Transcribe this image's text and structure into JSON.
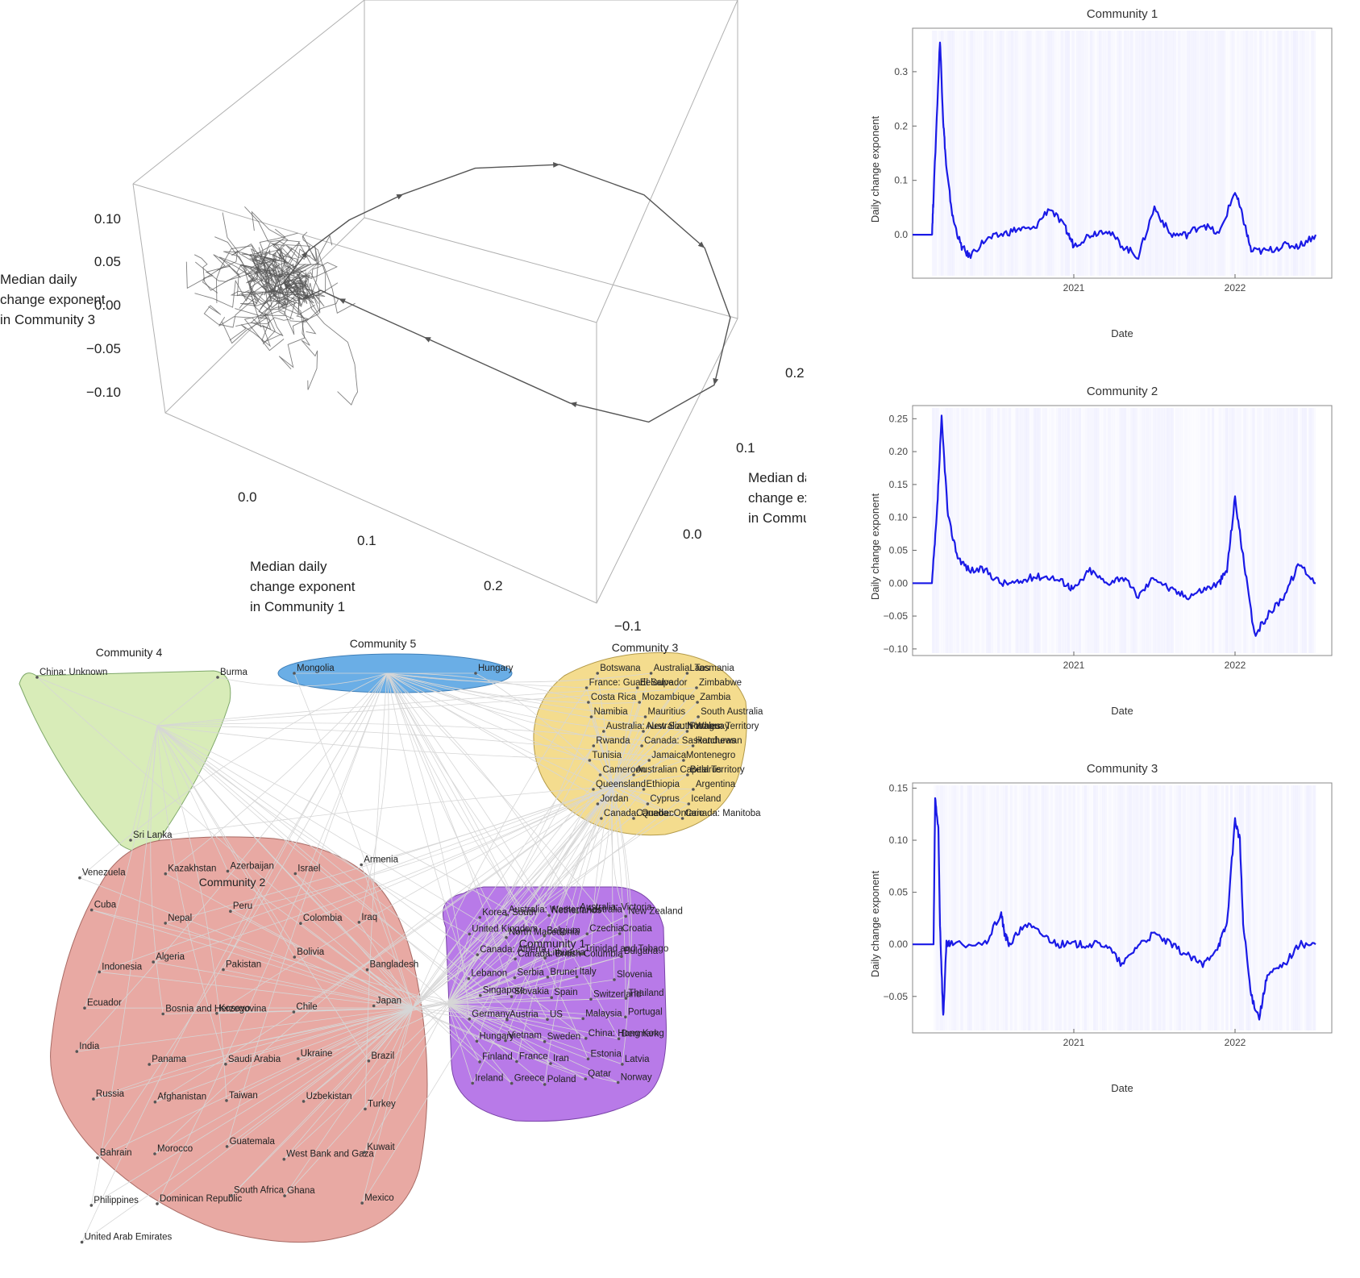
{
  "colors": {
    "community1": "#b87ae8",
    "community2": "#e8a9a3",
    "community3": "#f4dc8e",
    "community4": "#d8ecb8",
    "community5": "#6aaee6",
    "series": "#1a1ae6",
    "band": "#c8c8ff",
    "edge": "#cccccc",
    "trajectory": "#555555"
  },
  "chart_data": [
    {
      "id": "scatter3d",
      "type": "line",
      "title": "",
      "xlabel": "Median daily change exponent in Community 1",
      "xlabel_lines": [
        "Median daily",
        "change exponent",
        "in Community 1"
      ],
      "ylabel": "Median daily change exponent in Community 2",
      "ylabel_lines": [
        "Median daily",
        "change exponent",
        "in Community 2"
      ],
      "zlabel": "Median daily change exponent in Community 3",
      "zlabel_lines": [
        "Median daily",
        "change exponent",
        "in Community 3"
      ],
      "x_ticks": [
        "0.0",
        "0.1",
        "0.2"
      ],
      "y_ticks": [
        "−0.1",
        "0.0",
        "0.1",
        "0.2"
      ],
      "z_ticks": [
        "0.10",
        "0.05",
        "0.00",
        "−0.05",
        "−0.10"
      ],
      "xlim": [
        -0.05,
        0.3
      ],
      "ylim": [
        -0.1,
        0.25
      ],
      "zlim": [
        -0.12,
        0.15
      ],
      "series": [
        {
          "x": [
            0.0,
            0.01,
            0.03,
            0.06,
            0.1,
            0.15,
            0.2,
            0.24,
            0.27,
            0.28,
            0.25,
            0.2,
            0.15,
            0.1,
            0.06,
            0.04,
            0.03,
            0.02,
            0.01,
            0.0
          ],
          "y": [
            0.0,
            0.02,
            0.05,
            0.08,
            0.12,
            0.16,
            0.2,
            0.22,
            0.2,
            0.15,
            0.1,
            0.07,
            0.05,
            0.03,
            0.02,
            0.01,
            0.0,
            -0.01,
            0.0,
            0.0
          ],
          "z": [
            0.0,
            0.03,
            0.06,
            0.09,
            0.12,
            0.13,
            0.1,
            0.05,
            0.0,
            -0.04,
            -0.07,
            -0.06,
            -0.04,
            -0.02,
            -0.01,
            0.0,
            0.01,
            0.0,
            -0.01,
            0.0
          ]
        }
      ]
    },
    {
      "id": "ts1",
      "type": "line",
      "title": "Community 1",
      "xlabel": "Date",
      "ylabel": "Daily change exponent",
      "x_ticks": [
        "2021",
        "2022"
      ],
      "y_ticks": [
        "0.0",
        "0.1",
        "0.2",
        "0.3"
      ],
      "xlim": [
        2020.0,
        2022.6
      ],
      "ylim": [
        -0.08,
        0.38
      ],
      "series": [
        {
          "x": [
            2020.0,
            2020.12,
            2020.13,
            2020.17,
            2020.19,
            2020.21,
            2020.25,
            2020.3,
            2020.35,
            2020.45,
            2020.55,
            2020.65,
            2020.75,
            2020.85,
            2020.95,
            2021.0,
            2021.1,
            2021.2,
            2021.3,
            2021.4,
            2021.5,
            2021.6,
            2021.7,
            2021.8,
            2021.9,
            2022.0,
            2022.05,
            2022.1,
            2022.2,
            2022.3,
            2022.4,
            2022.5
          ],
          "y": [
            0.0,
            0.0,
            0.07,
            0.36,
            0.21,
            0.12,
            0.03,
            -0.02,
            -0.04,
            -0.01,
            0.0,
            0.01,
            0.01,
            0.05,
            0.01,
            -0.02,
            0.0,
            0.01,
            -0.02,
            -0.04,
            0.05,
            0.0,
            0.0,
            0.02,
            0.0,
            0.08,
            0.03,
            -0.03,
            -0.03,
            -0.02,
            -0.02,
            0.0
          ]
        }
      ]
    },
    {
      "id": "ts2",
      "type": "line",
      "title": "Community 2",
      "xlabel": "Date",
      "ylabel": "Daily change exponent",
      "x_ticks": [
        "2021",
        "2022"
      ],
      "y_ticks": [
        "−0.10",
        "−0.05",
        "0.00",
        "0.05",
        "0.10",
        "0.15",
        "0.20",
        "0.25"
      ],
      "xlim": [
        2020.0,
        2022.6
      ],
      "ylim": [
        -0.11,
        0.27
      ],
      "series": [
        {
          "x": [
            2020.0,
            2020.12,
            2020.15,
            2020.18,
            2020.22,
            2020.28,
            2020.35,
            2020.45,
            2020.55,
            2020.65,
            2020.75,
            2020.85,
            2020.95,
            2021.0,
            2021.1,
            2021.2,
            2021.3,
            2021.4,
            2021.5,
            2021.6,
            2021.7,
            2021.8,
            2021.9,
            2021.95,
            2022.0,
            2022.05,
            2022.12,
            2022.2,
            2022.3,
            2022.4,
            2022.5
          ],
          "y": [
            0.0,
            0.0,
            0.1,
            0.25,
            0.1,
            0.04,
            0.02,
            0.02,
            0.0,
            0.0,
            0.01,
            0.01,
            0.0,
            -0.01,
            0.02,
            0.0,
            0.01,
            -0.02,
            0.01,
            -0.01,
            -0.02,
            -0.01,
            0.0,
            0.02,
            0.13,
            0.04,
            -0.08,
            -0.05,
            -0.02,
            0.03,
            0.0
          ]
        }
      ]
    },
    {
      "id": "ts3",
      "type": "line",
      "title": "Community 3",
      "xlabel": "Date",
      "ylabel": "Daily change exponent",
      "x_ticks": [
        "2021",
        "2022"
      ],
      "y_ticks": [
        "−0.05",
        "0.00",
        "0.05",
        "0.10",
        "0.15"
      ],
      "xlim": [
        2020.0,
        2022.6
      ],
      "ylim": [
        -0.085,
        0.155
      ],
      "series": [
        {
          "x": [
            2020.0,
            2020.13,
            2020.14,
            2020.16,
            2020.17,
            2020.19,
            2020.21,
            2020.25,
            2020.45,
            2020.55,
            2020.57,
            2020.6,
            2020.7,
            2020.8,
            2020.9,
            2021.0,
            2021.1,
            2021.2,
            2021.3,
            2021.4,
            2021.5,
            2021.6,
            2021.7,
            2021.8,
            2021.9,
            2021.95,
            2022.0,
            2022.03,
            2022.05,
            2022.1,
            2022.15,
            2022.2,
            2022.3,
            2022.4,
            2022.5
          ],
          "y": [
            0.0,
            0.0,
            0.14,
            0.11,
            0.02,
            -0.07,
            0.0,
            0.0,
            0.0,
            0.03,
            0.01,
            0.0,
            0.02,
            0.01,
            0.0,
            0.0,
            0.0,
            0.0,
            -0.02,
            0.0,
            0.01,
            0.0,
            -0.01,
            -0.02,
            0.0,
            0.02,
            0.12,
            0.1,
            0.02,
            -0.05,
            -0.07,
            -0.03,
            -0.02,
            0.0,
            0.0
          ]
        }
      ]
    }
  ],
  "network": {
    "communities": [
      {
        "key": "c4",
        "label": "Community 4",
        "color_key": "community4"
      },
      {
        "key": "c5",
        "label": "Community 5",
        "color_key": "community5"
      },
      {
        "key": "c3",
        "label": "Community 3",
        "color_key": "community3"
      },
      {
        "key": "c2",
        "label": "Community 2",
        "color_key": "community2"
      },
      {
        "key": "c1",
        "label": "Community 1",
        "color_key": "community1"
      }
    ],
    "c4_nodes": [
      "China: Unknown",
      "Burma",
      "Sri Lanka"
    ],
    "c5_nodes": [
      "Mongolia",
      "Hungary"
    ],
    "c3_nodes": [
      "Botswana",
      "Australia: Tasmania",
      "Laos",
      "France: Guadeloupe",
      "El Salvador",
      "Zimbabwe",
      "Costa Rica",
      "Mozambique",
      "Zambia",
      "Namibia",
      "Mauritius",
      "South Australia",
      "Australia: New South Wales",
      "Australia: Northern Territory",
      "Paraguay",
      "Rwanda",
      "Canada: Saskatchewan",
      "Honduras",
      "Tunisia",
      "Jamaica",
      "Montenegro",
      "Cameroon",
      "Australian Capital Territory",
      "Belarus",
      "Queensland",
      "Ethiopia",
      "Argentina",
      "Jordan",
      "Cyprus",
      "Iceland",
      "Canada: Quebec",
      "Canada: Ontario",
      "Canada: Manitoba"
    ],
    "c2_nodes": [
      "Venezuela",
      "Kazakhstan",
      "Azerbaijan",
      "Israel",
      "Armenia",
      "Cuba",
      "Nepal",
      "Peru",
      "Colombia",
      "Iraq",
      "Indonesia",
      "Algeria",
      "Pakistan",
      "Bolivia",
      "Bangladesh",
      "Ecuador",
      "Bosnia and Herzegovina",
      "Kosovo",
      "Chile",
      "Japan",
      "India",
      "Panama",
      "Saudi Arabia",
      "Ukraine",
      "Brazil",
      "Russia",
      "Afghanistan",
      "Taiwan",
      "Uzbekistan",
      "Turkey",
      "Bahrain",
      "Morocco",
      "Guatemala",
      "West Bank and Gaza",
      "Kuwait",
      "Philippines",
      "Dominican Republic",
      "South Africa",
      "Ghana",
      "Mexico",
      "United Arab Emirates"
    ],
    "c1_nodes": [
      "Korea, South",
      "Australia: Western Australia",
      "Netherlands",
      "Australia: Victoria",
      "New Zealand",
      "United Kingdom",
      "North Macedonia",
      "Belgium",
      "Czechia",
      "Croatia",
      "Canada: Alberta",
      "Canada: British Columbia",
      "Lithuania",
      "Trinidad and Tobago",
      "Bulgaria",
      "Lebanon",
      "Serbia",
      "Brunei",
      "Italy",
      "Slovenia",
      "Singapore",
      "Slovakia",
      "Spain",
      "Switzerland",
      "Thailand",
      "Germany",
      "Austria",
      "US",
      "Malaysia",
      "Portugal",
      "Hungary",
      "Vietnam",
      "Sweden",
      "China: Hong Kong",
      "Denmark",
      "Finland",
      "France",
      "Iran",
      "Estonia",
      "Latvia",
      "Ireland",
      "Greece",
      "Poland",
      "Qatar",
      "Norway"
    ]
  }
}
